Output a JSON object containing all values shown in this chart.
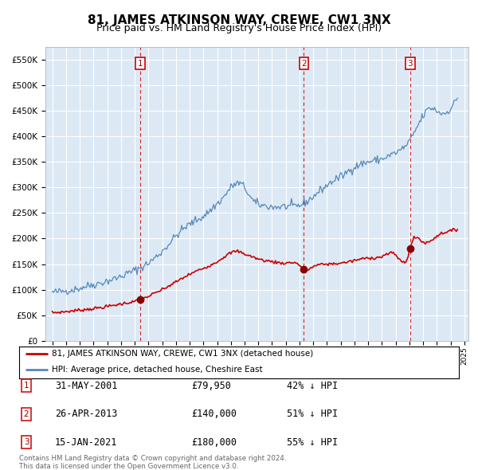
{
  "title": "81, JAMES ATKINSON WAY, CREWE, CW1 3NX",
  "subtitle": "Price paid vs. HM Land Registry's House Price Index (HPI)",
  "ylim": [
    0,
    575000
  ],
  "yticks": [
    0,
    50000,
    100000,
    150000,
    200000,
    250000,
    300000,
    350000,
    400000,
    450000,
    500000,
    550000
  ],
  "ytick_labels": [
    "£0",
    "£50K",
    "£100K",
    "£150K",
    "£200K",
    "£250K",
    "£300K",
    "£350K",
    "£400K",
    "£450K",
    "£500K",
    "£550K"
  ],
  "sale_dates_num": [
    2001.414,
    2013.319,
    2021.042
  ],
  "sale_prices": [
    79950,
    140000,
    180000
  ],
  "sale_labels": [
    "1",
    "2",
    "3"
  ],
  "sale_dates_str": [
    "31-MAY-2001",
    "26-APR-2013",
    "15-JAN-2021"
  ],
  "sale_prices_str": [
    "£79,950",
    "£140,000",
    "£180,000"
  ],
  "sale_pct_str": [
    "42% ↓ HPI",
    "51% ↓ HPI",
    "55% ↓ HPI"
  ],
  "property_line_color": "#cc0000",
  "hpi_line_color": "#5588bb",
  "legend_property_label": "81, JAMES ATKINSON WAY, CREWE, CW1 3NX (detached house)",
  "legend_hpi_label": "HPI: Average price, detached house, Cheshire East",
  "footer_line1": "Contains HM Land Registry data © Crown copyright and database right 2024.",
  "footer_line2": "This data is licensed under the Open Government Licence v3.0.",
  "plot_bg_color": "#dce9f5",
  "grid_color": "#ffffff",
  "title_fontsize": 11,
  "subtitle_fontsize": 9,
  "hpi_anchors_t": [
    1995.0,
    1995.5,
    1996.0,
    1996.5,
    1997.0,
    1997.5,
    1998.0,
    1998.5,
    1999.0,
    1999.5,
    2000.0,
    2000.5,
    2001.0,
    2001.5,
    2002.0,
    2002.5,
    2003.0,
    2003.5,
    2004.0,
    2004.5,
    2005.0,
    2005.5,
    2006.0,
    2006.5,
    2007.0,
    2007.5,
    2008.0,
    2008.5,
    2009.0,
    2009.5,
    2010.0,
    2010.5,
    2011.0,
    2011.5,
    2012.0,
    2012.5,
    2013.0,
    2013.5,
    2014.0,
    2014.5,
    2015.0,
    2015.5,
    2016.0,
    2016.5,
    2017.0,
    2017.5,
    2018.0,
    2018.5,
    2019.0,
    2019.5,
    2020.0,
    2020.5,
    2021.0,
    2021.5,
    2022.0,
    2022.5,
    2023.0,
    2023.5,
    2024.0,
    2024.5
  ],
  "hpi_anchors_p": [
    95000,
    96000,
    98000,
    100000,
    103000,
    107000,
    110000,
    113000,
    117000,
    121000,
    126000,
    132000,
    138000,
    144000,
    152000,
    163000,
    175000,
    190000,
    205000,
    218000,
    228000,
    236000,
    244000,
    255000,
    268000,
    282000,
    300000,
    308000,
    300000,
    278000,
    267000,
    264000,
    262000,
    262000,
    263000,
    263000,
    265000,
    272000,
    282000,
    294000,
    304000,
    314000,
    321000,
    331000,
    340000,
    346000,
    350000,
    353000,
    356000,
    362000,
    368000,
    376000,
    390000,
    415000,
    440000,
    455000,
    450000,
    445000,
    455000,
    475000
  ],
  "prop_anchors_t": [
    1995.0,
    1996.0,
    1997.0,
    1998.0,
    1999.0,
    2000.0,
    2001.0,
    2001.414,
    2002.0,
    2003.0,
    2004.0,
    2005.0,
    2006.0,
    2007.0,
    2008.0,
    2008.5,
    2009.0,
    2009.5,
    2010.0,
    2011.0,
    2012.0,
    2013.0,
    2013.319,
    2014.0,
    2015.0,
    2016.0,
    2017.0,
    2018.0,
    2019.0,
    2020.0,
    2021.0,
    2021.042,
    2022.0,
    2023.0,
    2024.0,
    2024.5
  ],
  "prop_anchors_p": [
    55000,
    57000,
    60000,
    63000,
    67000,
    72000,
    77000,
    79950,
    87000,
    100000,
    115000,
    130000,
    142000,
    155000,
    172000,
    175000,
    170000,
    165000,
    160000,
    155000,
    152000,
    148000,
    140000,
    145000,
    150000,
    152000,
    157000,
    162000,
    165000,
    168000,
    175000,
    180000,
    193000,
    205000,
    215000,
    218000
  ]
}
